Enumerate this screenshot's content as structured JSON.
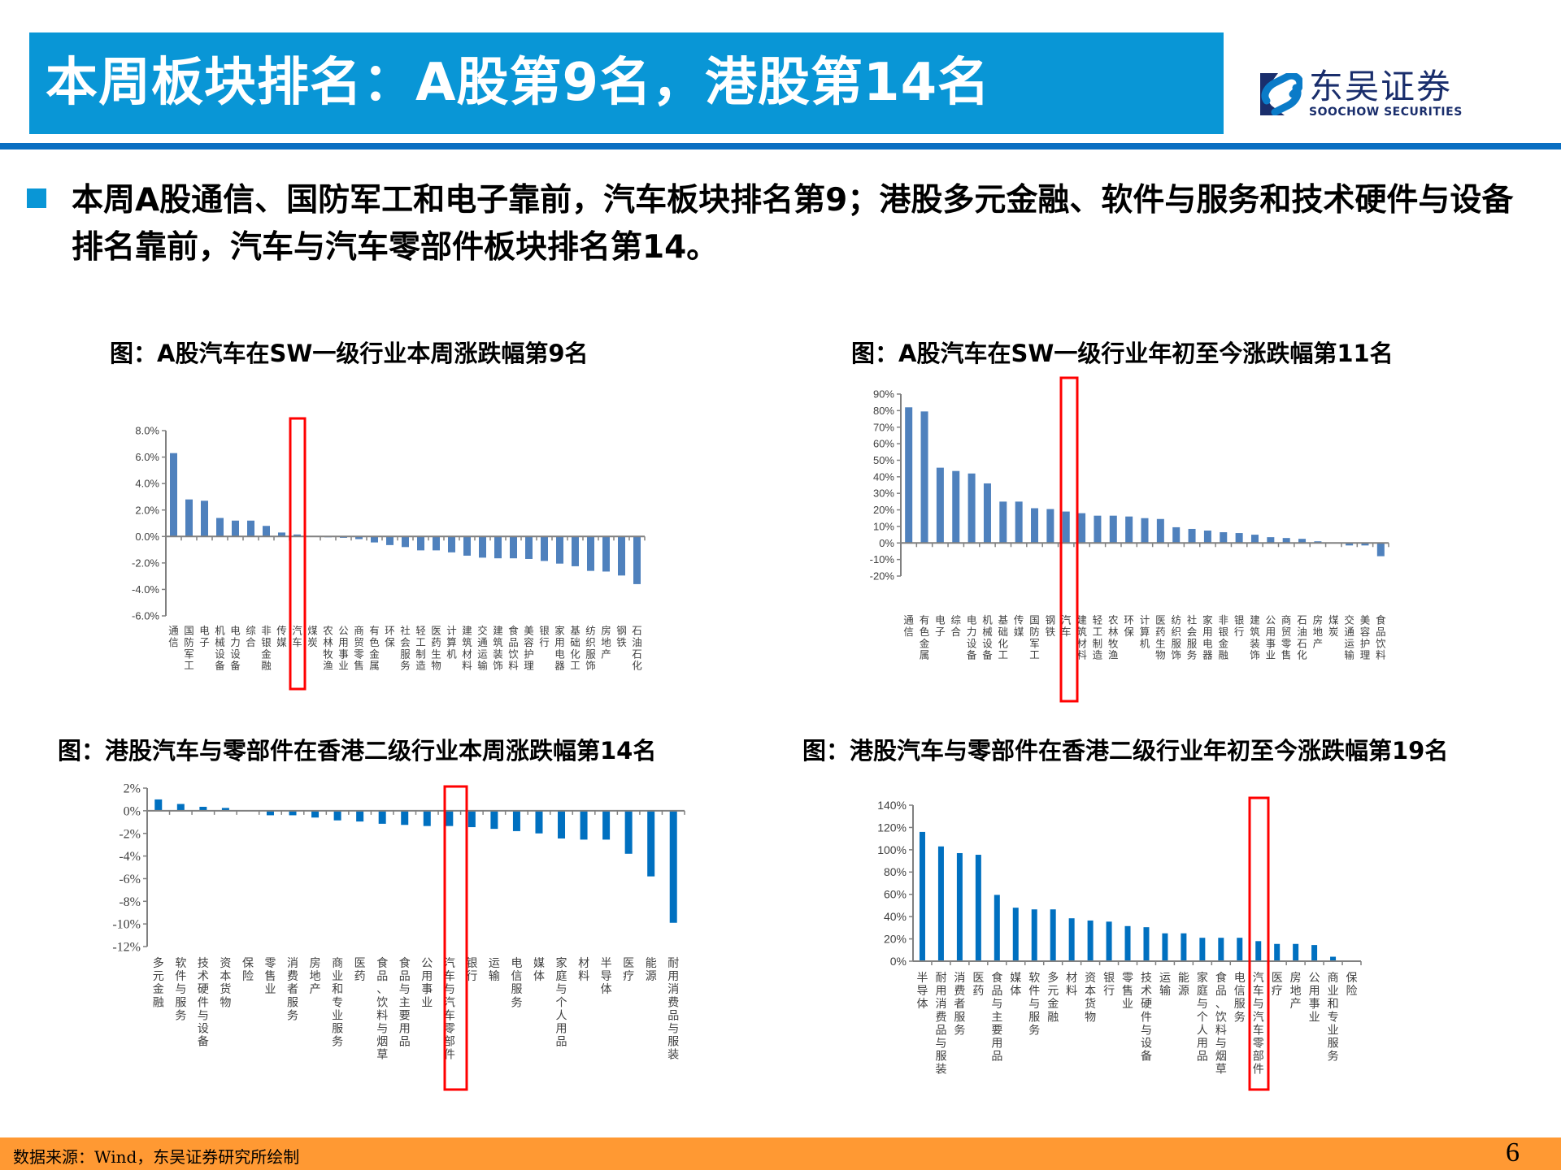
{
  "header": {
    "title": "本周板块排名：A股第9名，港股第14名",
    "logo_cn": "东吴证券",
    "logo_en": "SOOCHOW SECURITIES"
  },
  "summary": {
    "text": "本周A股通信、国防军工和电子靠前，汽车板块排名第9；港股多元金融、软件与服务和技术硬件与设备排名靠前，汽车与汽车零部件板块排名第14。"
  },
  "footer": {
    "source": "数据来源：Wind，东吴证券研究所绘制",
    "page": "6"
  },
  "colors": {
    "title_bar": "#0996D6",
    "rule": "#0A6FC2",
    "footer": "#FF9933",
    "bar_a_share": "#4F81BD",
    "bar_hk": "#0070C0",
    "highlight_box": "#FF0000"
  },
  "chart_data": [
    {
      "id": "a_week",
      "type": "bar",
      "title": "图：A股汽车在SW一级行业本周涨跌幅第9名",
      "xlabel": "",
      "ylabel": "",
      "ylim": [
        -6,
        8
      ],
      "yticks": [
        8,
        6,
        4,
        2,
        0,
        -2,
        -4,
        -6
      ],
      "ytick_labels": [
        "8.0%",
        "6.0%",
        "4.0%",
        "2.0%",
        "0.0%",
        "-2.0%",
        "-4.0%",
        "-6.0%"
      ],
      "grid": false,
      "legend": "none",
      "highlight": "汽车",
      "categories": [
        "通信",
        "国防军工",
        "电子",
        "机械设备",
        "电力设备",
        "综合",
        "非银金融",
        "传媒",
        "汽车",
        "煤炭",
        "农林牧渔",
        "公用事业",
        "商贸零售",
        "有色金属",
        "环保",
        "社会服务",
        "轻工制造",
        "医药生物",
        "计算机",
        "建筑材料",
        "交通运输",
        "建筑装饰",
        "食品饮料",
        "美容护理",
        "银行",
        "家用电器",
        "基础化工",
        "纺织服饰",
        "房地产",
        "钢铁",
        "石油石化"
      ],
      "values": [
        6.3,
        2.8,
        2.7,
        1.4,
        1.2,
        1.2,
        0.8,
        0.3,
        0.15,
        0.0,
        -0.02,
        -0.1,
        -0.2,
        -0.45,
        -0.65,
        -0.8,
        -1.05,
        -1.05,
        -1.2,
        -1.45,
        -1.6,
        -1.65,
        -1.65,
        -1.7,
        -1.85,
        -2.05,
        -2.25,
        -2.6,
        -2.65,
        -2.95,
        -3.6
      ]
    },
    {
      "id": "a_ytd",
      "type": "bar",
      "title": "图：A股汽车在SW一级行业年初至今涨跌幅第11名",
      "xlabel": "",
      "ylabel": "",
      "ylim": [
        -20,
        90
      ],
      "yticks": [
        90,
        80,
        70,
        60,
        50,
        40,
        30,
        20,
        10,
        0,
        -10,
        -20
      ],
      "ytick_labels": [
        "90%",
        "80%",
        "70%",
        "60%",
        "50%",
        "40%",
        "30%",
        "20%",
        "10%",
        "0%",
        "-10%",
        "-20%"
      ],
      "grid": false,
      "legend": "none",
      "highlight": "汽车",
      "categories": [
        "通信",
        "有色金属",
        "电子",
        "综合",
        "电力设备",
        "机械设备",
        "基础化工",
        "传媒",
        "国防军工",
        "钢铁",
        "汽车",
        "建筑材料",
        "轻工制造",
        "农林牧渔",
        "环保",
        "计算机",
        "医药生物",
        "纺织服饰",
        "社会服务",
        "家用电器",
        "非银金融",
        "银行",
        "建筑装饰",
        "公用事业",
        "商贸零售",
        "石油石化",
        "房地产",
        "煤炭",
        "交通运输",
        "美容护理",
        "食品饮料"
      ],
      "values": [
        82,
        79.5,
        45.5,
        43.5,
        42,
        36,
        25,
        25,
        21,
        20.5,
        19,
        18,
        16.5,
        16.5,
        16,
        15,
        14.5,
        9.5,
        8.5,
        7.5,
        6.5,
        6,
        5,
        3.5,
        3,
        2.5,
        1,
        0,
        -1.5,
        -1.5,
        -8
      ]
    },
    {
      "id": "hk_week",
      "type": "bar",
      "title": "图：港股汽车与零部件在香港二级行业本周涨跌幅第14名",
      "xlabel": "",
      "ylabel": "",
      "ylim": [
        -12,
        2
      ],
      "yticks": [
        2,
        0,
        -2,
        -4,
        -6,
        -8,
        -10,
        -12
      ],
      "ytick_labels": [
        "2%",
        "0%",
        "-2%",
        "-4%",
        "-6%",
        "-8%",
        "-10%",
        "-12%"
      ],
      "grid": false,
      "legend": "none",
      "highlight": "汽车与汽车零部件",
      "categories": [
        "多元金融",
        "软件与服务",
        "技术硬件与设备",
        "资本货物",
        "保险",
        "零售业",
        "消费者服务",
        "房地产",
        "商业和专业服务",
        "医药",
        "食品、饮料与烟草",
        "食品与主要用品",
        "公用事业",
        "汽车与汽车零部件",
        "银行",
        "运输",
        "电信服务",
        "媒体",
        "家庭与个人用品",
        "材料",
        "半导体",
        "医疗",
        "能源",
        "耐用消费品与服装"
      ],
      "values": [
        1.0,
        0.6,
        0.35,
        0.25,
        0.0,
        -0.4,
        -0.4,
        -0.6,
        -0.85,
        -0.95,
        -1.15,
        -1.25,
        -1.35,
        -1.35,
        -1.45,
        -1.6,
        -1.8,
        -2.0,
        -2.45,
        -2.55,
        -2.55,
        -3.8,
        -5.8,
        -9.9
      ]
    },
    {
      "id": "hk_ytd",
      "type": "bar",
      "title": "图：港股汽车与零部件在香港二级行业年初至今涨跌幅第19名",
      "xlabel": "",
      "ylabel": "",
      "ylim": [
        0,
        140
      ],
      "yticks": [
        140,
        120,
        100,
        80,
        60,
        40,
        20,
        0
      ],
      "ytick_labels": [
        "140%",
        "120%",
        "100%",
        "80%",
        "60%",
        "40%",
        "20%",
        "0%"
      ],
      "grid": false,
      "legend": "none",
      "highlight": "汽车与汽车零部件",
      "categories": [
        "半导体",
        "耐用消费品与服装",
        "消费者服务",
        "医药",
        "食品与主要用品",
        "媒体",
        "软件与服务",
        "多元金融",
        "材料",
        "资本货物",
        "银行",
        "零售业",
        "技术硬件与设备",
        "运输",
        "能源",
        "家庭与个人用品",
        "食品、饮料与烟草",
        "电信服务",
        "汽车与汽车零部件",
        "医疗",
        "房地产",
        "公用事业",
        "商业和专业服务",
        "保险"
      ],
      "values": [
        116,
        103,
        97,
        95.5,
        59.5,
        48,
        46.5,
        46.5,
        38.5,
        36.5,
        35.5,
        31.5,
        30.5,
        25,
        25,
        21,
        21,
        21,
        18,
        15.5,
        15.5,
        14.5,
        4,
        0
      ]
    }
  ]
}
